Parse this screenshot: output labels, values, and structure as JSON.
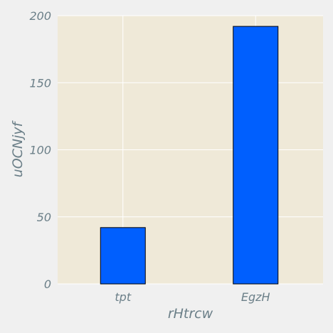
{
  "chart_data": {
    "type": "bar",
    "categories": [
      "tpt",
      "EgzH"
    ],
    "values": [
      42,
      192
    ],
    "xlabel": "rHtrcw",
    "ylabel": "uOCNjyf",
    "ylim": [
      0,
      200
    ],
    "yticks": [
      0,
      50,
      100,
      150,
      200
    ],
    "grid": true,
    "colors": {
      "bar_fill": "#005ffe",
      "bar_edge": "#000000",
      "plot_bg": "#efe9d8",
      "figure_bg": "#f0f0f0",
      "grid": "#ffffff",
      "text": "#6b7f88"
    }
  }
}
